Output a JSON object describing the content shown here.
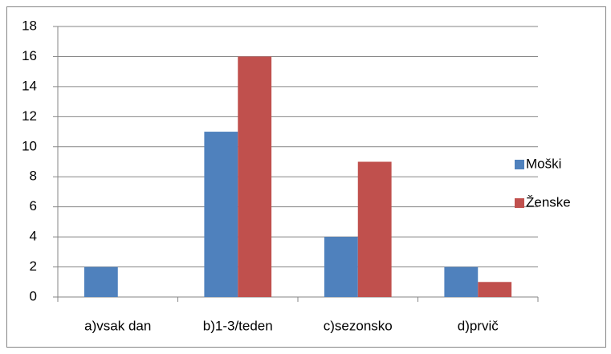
{
  "chart_data": {
    "type": "bar",
    "categories": [
      "a)vsak dan",
      "b)1-3/teden",
      "c)sezonsko",
      "d)prvič"
    ],
    "series": [
      {
        "name": "Moški",
        "color": "#4f81bd",
        "values": [
          2,
          11,
          4,
          2
        ]
      },
      {
        "name": "Ženske",
        "color": "#c0504d",
        "values": [
          0,
          16,
          9,
          1
        ]
      }
    ],
    "ylim": [
      0,
      18
    ],
    "yticks": [
      0,
      2,
      4,
      6,
      8,
      10,
      12,
      14,
      16,
      18
    ],
    "grid": true,
    "legend": "right"
  }
}
